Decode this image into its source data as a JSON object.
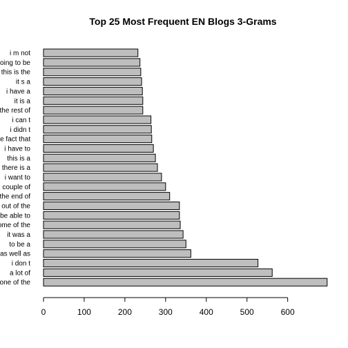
{
  "chart_data": {
    "type": "bar",
    "orientation": "horizontal",
    "title": "Top 25 Most Frequent EN Blogs 3-Grams",
    "xlabel": "",
    "ylabel": "",
    "xlim": [
      0,
      700
    ],
    "x_ticks": [
      0,
      100,
      200,
      300,
      400,
      500,
      600
    ],
    "grid": false,
    "legend": "none",
    "bar_color": "#bebebe",
    "bar_border_color": "#000000",
    "categories": [
      "one of the",
      "a lot of",
      "i don t",
      "as well as",
      "to be a",
      "it was a",
      "some of the",
      "be able to",
      "out of the",
      "the end of",
      "couple of",
      "i want to",
      "there is a",
      "this is a",
      "i have to",
      "the fact that",
      "i didn t",
      "i can t",
      "the rest of",
      "it is a",
      "i have a",
      "it s a",
      "this is the",
      "going to be",
      "i m not"
    ],
    "values": [
      697,
      562,
      527,
      362,
      350,
      343,
      336,
      334,
      334,
      310,
      300,
      290,
      280,
      275,
      270,
      266,
      265,
      264,
      244,
      244,
      243,
      241,
      239,
      237,
      232
    ]
  }
}
